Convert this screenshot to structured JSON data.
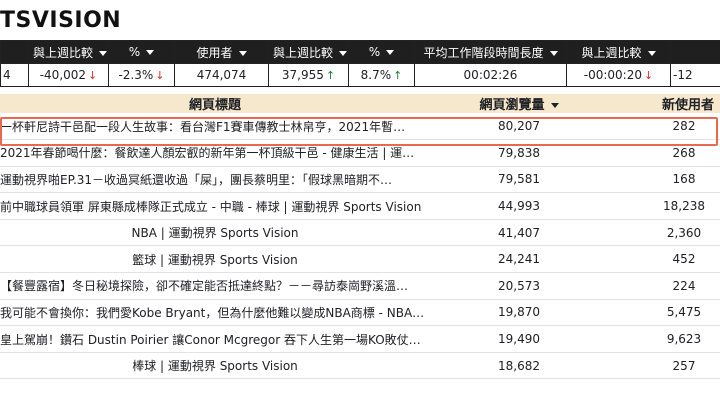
{
  "title": "TSVISION",
  "kpi": {
    "headers": [
      "",
      "與上週比較",
      "%",
      "使用者",
      "與上週比較",
      "%",
      "平均工作階段時間長度",
      "與上週比較",
      ""
    ],
    "values": [
      {
        "text": "4",
        "arrow": ""
      },
      {
        "text": "-40,002",
        "arrow": "down"
      },
      {
        "text": "-2.3%",
        "arrow": "down"
      },
      {
        "text": "474,074",
        "arrow": ""
      },
      {
        "text": "37,955",
        "arrow": "up"
      },
      {
        "text": "8.7%",
        "arrow": "up"
      },
      {
        "text": "00:02:26",
        "arrow": ""
      },
      {
        "text": "-00:00:20",
        "arrow": "down"
      },
      {
        "text": "-12",
        "arrow": ""
      }
    ]
  },
  "table": {
    "col_title": "網頁標題",
    "col_views": "網頁瀏覽量",
    "col_new_users": "新使用者",
    "rows": [
      {
        "title": "一杯軒尼詩干邑配一段人生故事：看台灣F1賽車傳教士林帛亨，2021年暫…",
        "views": "80,207",
        "new_users": "282"
      },
      {
        "title": "2021年春節喝什麼：餐飲達人顏宏叡的新年第一杯頂級干邑 - 健康生活 | 運…",
        "views": "79,838",
        "new_users": "268"
      },
      {
        "title": "運動視界啪EP.31－收過冥紙還收過「屎」，團長蔡明里：「假球黑暗期不…",
        "views": "79,581",
        "new_users": "168"
      },
      {
        "title": "前中職球員領軍 屏東縣成棒隊正式成立 - 中職 - 棒球 | 運動視界 Sports Vision",
        "views": "44,993",
        "new_users": "18,238"
      },
      {
        "title": "NBA | 運動視界 Sports Vision",
        "views": "41,407",
        "new_users": "2,360"
      },
      {
        "title": "籃球 | 運動視界 Sports Vision",
        "views": "24,241",
        "new_users": "452"
      },
      {
        "title": "【餐豐露宿】冬日秘境探險，卻不確定能否抵達終點？－－尋訪泰崗野溪溫…",
        "views": "20,573",
        "new_users": "224"
      },
      {
        "title": "我可能不會換你：我們愛Kobe Bryant，但為什麼他難以變成NBA商標 - NBA…",
        "views": "19,870",
        "new_users": "5,475"
      },
      {
        "title": "皇上駕崩！鑽石 Dustin Poirier 讓Conor Mcgregor 吞下人生第一場KO敗仗…",
        "views": "19,490",
        "new_users": "9,623"
      },
      {
        "title": "棒球 | 運動視界 Sports Vision",
        "views": "18,682",
        "new_users": "257"
      }
    ]
  },
  "colors": {
    "header_dark": "#1f1f1f",
    "table_header": "#f5e8cc",
    "down": "#d93025",
    "up": "#188038",
    "highlight": "#e8694f"
  }
}
